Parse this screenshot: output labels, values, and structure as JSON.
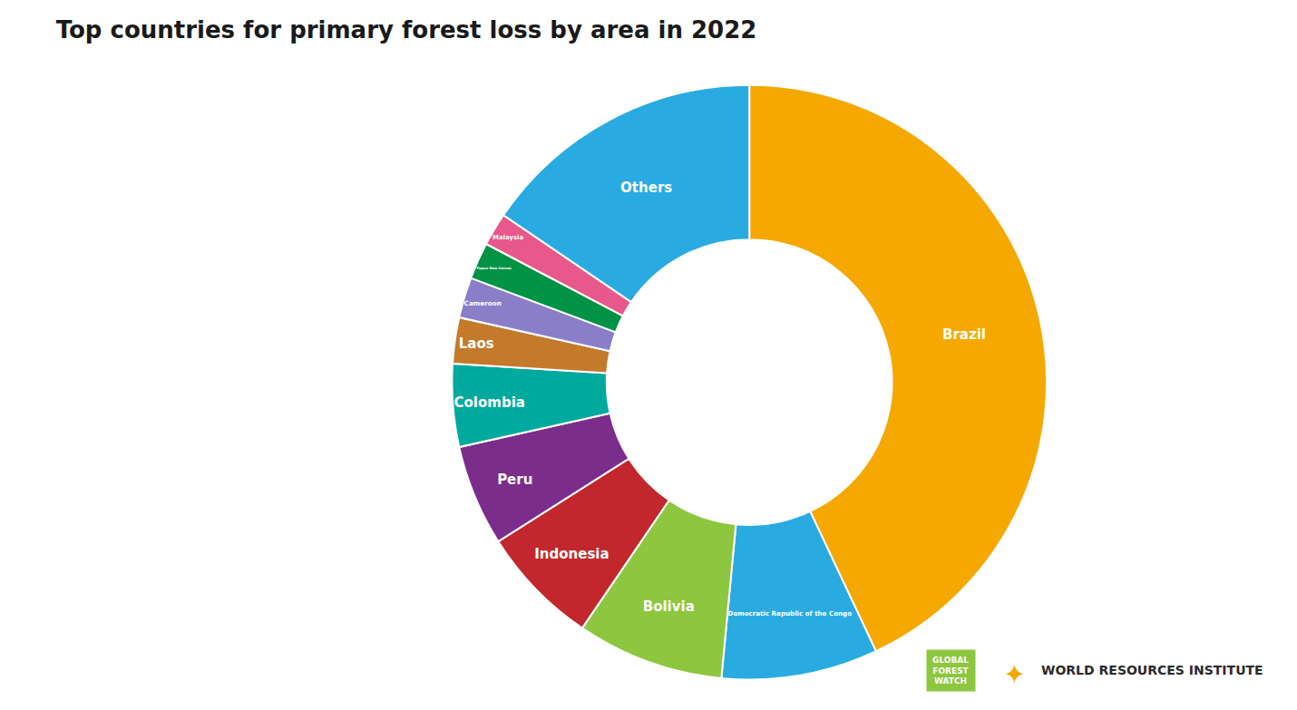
{
  "chart_data": {
    "type": "pie",
    "title": "Top countries for primary forest loss by area in 2022",
    "categories": [
      "Brazil",
      "Democratic Republic of the Congo",
      "Bolivia",
      "Indonesia",
      "Peru",
      "Colombia",
      "Laos",
      "Cameroon",
      "Papua New Guinea",
      "Malaysia",
      "Others"
    ],
    "values": [
      43.0,
      8.5,
      8.0,
      6.5,
      5.5,
      4.5,
      2.5,
      2.2,
      2.0,
      1.8,
      15.5
    ],
    "colors": [
      "#F5A800",
      "#29ABE2",
      "#8DC63F",
      "#C1272D",
      "#7B2D8B",
      "#00A99D",
      "#C47A2B",
      "#8B7EC8",
      "#009245",
      "#E8588A",
      "#29ABE2"
    ],
    "annotations": [
      "GLOBAL\nFOREST\nWATCH",
      "✦",
      "WORLD RESOURCES INSTITUTE"
    ]
  }
}
